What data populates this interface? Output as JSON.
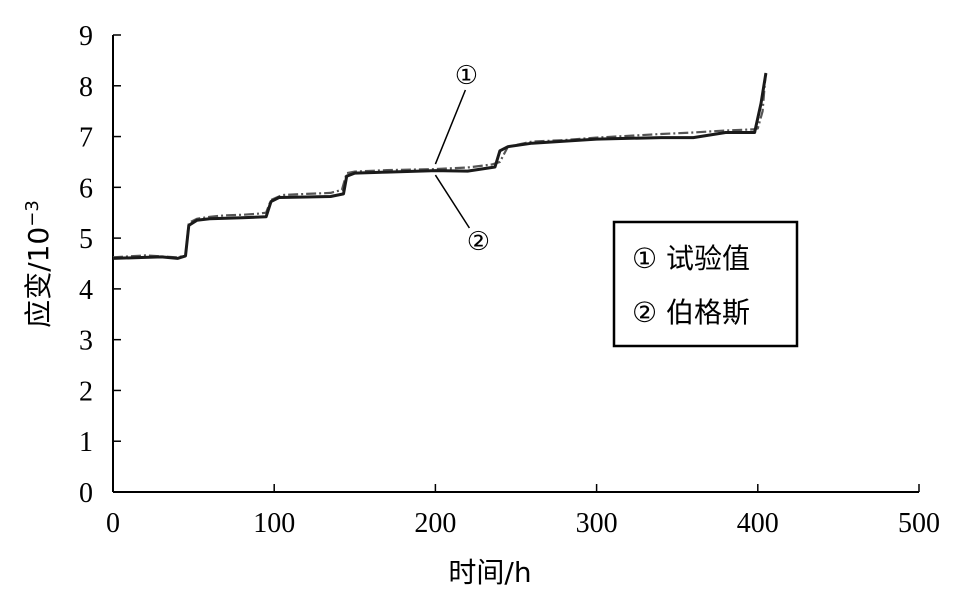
{
  "chart_data": {
    "type": "line",
    "xlabel": "时间/h",
    "ylabel": "应变/10",
    "ylabel_exponent": "−3",
    "xlim": [
      0,
      500
    ],
    "ylim": [
      0,
      9
    ],
    "xticks": [
      "0",
      "100",
      "200",
      "300",
      "400",
      "500"
    ],
    "yticks": [
      "0",
      "1",
      "2",
      "3",
      "4",
      "5",
      "6",
      "7",
      "8",
      "9"
    ],
    "grid": false,
    "legend_position": "right",
    "series": [
      {
        "name": "① 试验值",
        "style": "dash-dot",
        "color": "#555555",
        "x": [
          0,
          20,
          40,
          45,
          47,
          52,
          60,
          70,
          80,
          90,
          95,
          98,
          105,
          120,
          135,
          142,
          145,
          150,
          170,
          200,
          220,
          235,
          240,
          245,
          260,
          280,
          300,
          340,
          360,
          380,
          397,
          400,
          403,
          405
        ],
        "y": [
          4.62,
          4.66,
          4.62,
          4.66,
          5.3,
          5.38,
          5.42,
          5.45,
          5.46,
          5.48,
          5.5,
          5.75,
          5.85,
          5.87,
          5.89,
          5.95,
          6.28,
          6.31,
          6.34,
          6.36,
          6.39,
          6.45,
          6.5,
          6.8,
          6.9,
          6.93,
          6.98,
          7.05,
          7.08,
          7.12,
          7.14,
          7.16,
          7.5,
          8.3
        ]
      },
      {
        "name": "② 伯格斯",
        "style": "solid",
        "color": "#1a1a1a",
        "x": [
          0,
          20,
          30,
          40,
          45,
          47,
          52,
          60,
          80,
          95,
          98,
          103,
          120,
          135,
          143,
          145,
          150,
          170,
          200,
          220,
          237,
          240,
          245,
          260,
          300,
          340,
          360,
          380,
          398,
          402,
          405
        ],
        "y": [
          4.6,
          4.62,
          4.63,
          4.6,
          4.65,
          5.25,
          5.35,
          5.38,
          5.4,
          5.42,
          5.72,
          5.8,
          5.81,
          5.82,
          5.87,
          6.22,
          6.28,
          6.3,
          6.33,
          6.32,
          6.4,
          6.72,
          6.8,
          6.87,
          6.95,
          6.98,
          6.98,
          7.08,
          7.08,
          7.65,
          8.25
        ]
      }
    ],
    "annotations": [
      {
        "text": "①",
        "x": 200,
        "y": 6.38
      },
      {
        "text": "②",
        "x": 200,
        "y": 6.32
      }
    ]
  },
  "legend": {
    "items": [
      "① 试验值",
      "② 伯格斯"
    ]
  }
}
